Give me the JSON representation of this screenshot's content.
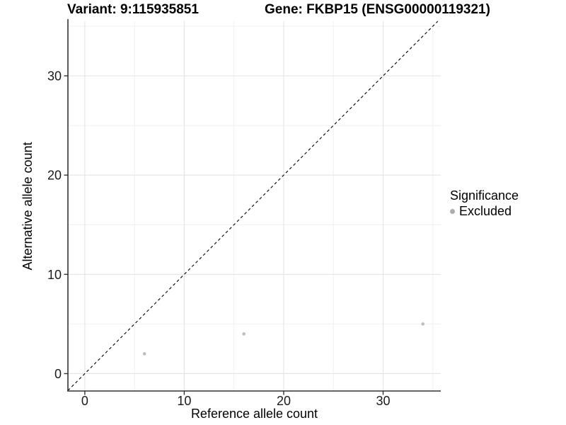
{
  "titles": {
    "left": "Variant: 9:115935851",
    "right": "Gene: FKBP15 (ENSG00000119321)"
  },
  "chart_data": {
    "type": "scatter",
    "xlabel": "Reference allele count",
    "ylabel": "Alternative allele count",
    "xlim": [
      -1.7,
      35.8
    ],
    "ylim": [
      -1.75,
      35.5
    ],
    "x_major_ticks": [
      0,
      10,
      20,
      30
    ],
    "x_minor_ticks": [
      5,
      15,
      25,
      35
    ],
    "y_major_ticks": [
      0,
      10,
      20,
      30
    ],
    "y_minor_ticks": [
      5,
      15,
      25,
      35
    ],
    "grid": true,
    "series": [
      {
        "name": "Excluded",
        "color": "#bdbdbd",
        "points": [
          {
            "x": 6,
            "y": 2
          },
          {
            "x": 16,
            "y": 4
          },
          {
            "x": 34,
            "y": 5
          }
        ]
      }
    ],
    "identity_line": {
      "slope": 1,
      "intercept": 0,
      "style": "dashed",
      "color": "#000000"
    },
    "legend": {
      "position": "right",
      "title": "Significance",
      "items": [
        {
          "label": "Excluded",
          "color": "#acacac"
        }
      ]
    },
    "colors": {
      "grid_major": "#e4e4e4",
      "grid_minor": "#f1f1f1",
      "axis_line": "#333333",
      "tick_label": "#1a1a1a",
      "background": "#ffffff"
    }
  }
}
